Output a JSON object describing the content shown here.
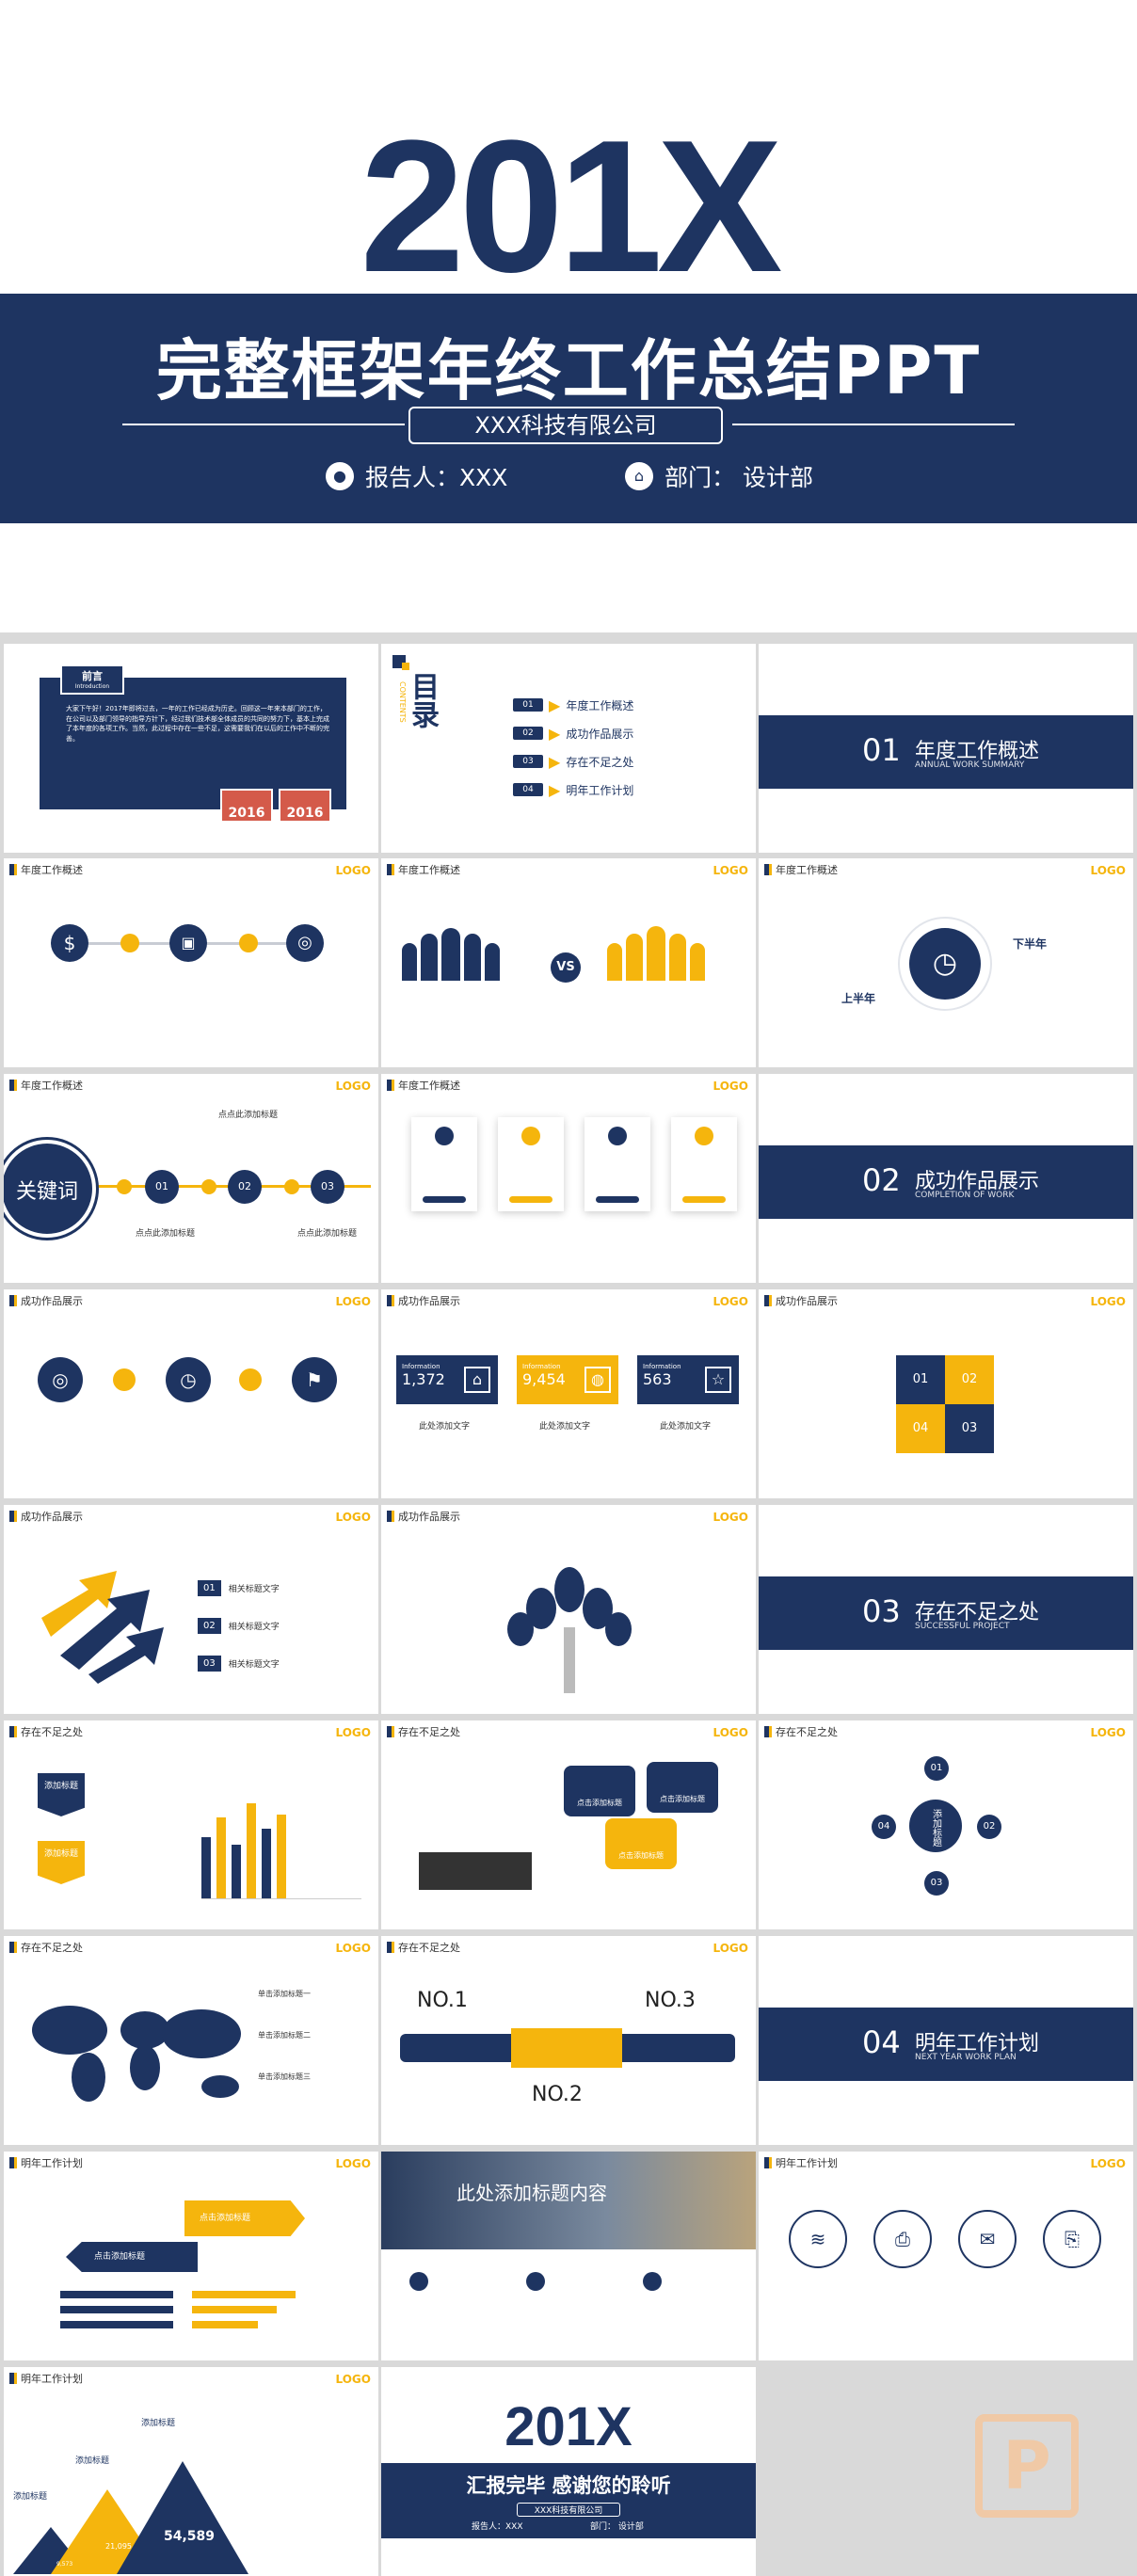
{
  "cover": {
    "year": "201X",
    "title": "完整框架年终工作总结PPT",
    "company": "XXX科技有限公司",
    "reporter": "报告人：XXX",
    "department": "部门：  设计部"
  },
  "preface": {
    "title": "前言",
    "subtitle": "Introduction",
    "body": "大家下午好！2017年即将过去，一年的工作已经成为历史。回顾这一年来本部门的工作，在公司以及部门领导的指导方针下，经过我们技术部全体成员的共同的努力下，基本上完成了本年度的各项工作。当然，此过程中存在一些不足，这需要我们在以后的工作中不断的完善。",
    "tag1": "2016",
    "tag2": "2016"
  },
  "toc": {
    "title": "目录",
    "title_en": "CONTENTS",
    "items": [
      {
        "num": "01",
        "label": "年度工作概述"
      },
      {
        "num": "02",
        "label": "成功作品展示"
      },
      {
        "num": "03",
        "label": "存在不足之处"
      },
      {
        "num": "04",
        "label": "明年工作计划"
      }
    ]
  },
  "sections": [
    {
      "num": "01",
      "name": "年度工作概述",
      "sub": "ANNUAL WORK SUMMARY"
    },
    {
      "num": "02",
      "name": "成功作品展示",
      "sub": "COMPLETION OF WORK"
    },
    {
      "num": "03",
      "name": "存在不足之处",
      "sub": "SUCCESSFUL PROJECT"
    },
    {
      "num": "04",
      "name": "明年工作计划",
      "sub": "NEXT YEAR WORK PLAN"
    }
  ],
  "logo": "LOGO",
  "headers": {
    "annual": "年度工作概述",
    "works": "成功作品展示",
    "shortfall": "存在不足之处",
    "plan": "明年工作计划"
  },
  "keyword_slide": {
    "keyword": "关键词",
    "nodes": [
      "01",
      "02",
      "03"
    ],
    "label_top": "点点此添加标题",
    "label_a": "点点此添加标题",
    "label_b": "点点此添加标题"
  },
  "half_year": {
    "a": "下半年",
    "b": "上半年"
  },
  "vs": "VS",
  "info_cards": [
    {
      "label": "Information",
      "value": "1,372"
    },
    {
      "label": "Information",
      "value": "9,454"
    },
    {
      "label": "Information",
      "value": "563"
    }
  ],
  "info_titles": [
    "此处添加文字",
    "此处添加文字",
    "此处添加文字"
  ],
  "puzzle": [
    "01",
    "02",
    "03",
    "04"
  ],
  "arrows_list": [
    {
      "num": "01",
      "label": "相关标题文字"
    },
    {
      "num": "02",
      "label": "相关标题文字"
    },
    {
      "num": "03",
      "label": "相关标题文字"
    }
  ],
  "bars_slide": {
    "label1": "添加标题",
    "label2": "添加标题"
  },
  "bubbles": [
    "点击添加标题",
    "点击添加标题",
    "点击添加标题"
  ],
  "flower": {
    "center": "添加标题",
    "petals": [
      "01",
      "02",
      "03",
      "04"
    ]
  },
  "map_labels": [
    "单击添加标题一",
    "单击添加标题二",
    "单击添加标题三"
  ],
  "rank": {
    "no1": "NO.1",
    "no2": "NO.2",
    "no3": "NO.3"
  },
  "plan_arrows": {
    "a": "点击添加标题",
    "b": "点击添加标题"
  },
  "photo_title": "此处添加标题内容",
  "triangles": {
    "t1": "添加标题",
    "t2": "添加标题",
    "t3": "添加标题",
    "v1": "54,589",
    "v2": "21,095",
    "v3": "9,573"
  },
  "closing": {
    "year": "201X",
    "title": "汇报完毕  感谢您的聆听",
    "company": "XXX科技有限公司",
    "reporter": "报告人：XXX",
    "department": "部门：  设计部"
  },
  "watermark": "P",
  "colors": {
    "navy": "#1e3461",
    "yellow": "#f5b50d"
  }
}
